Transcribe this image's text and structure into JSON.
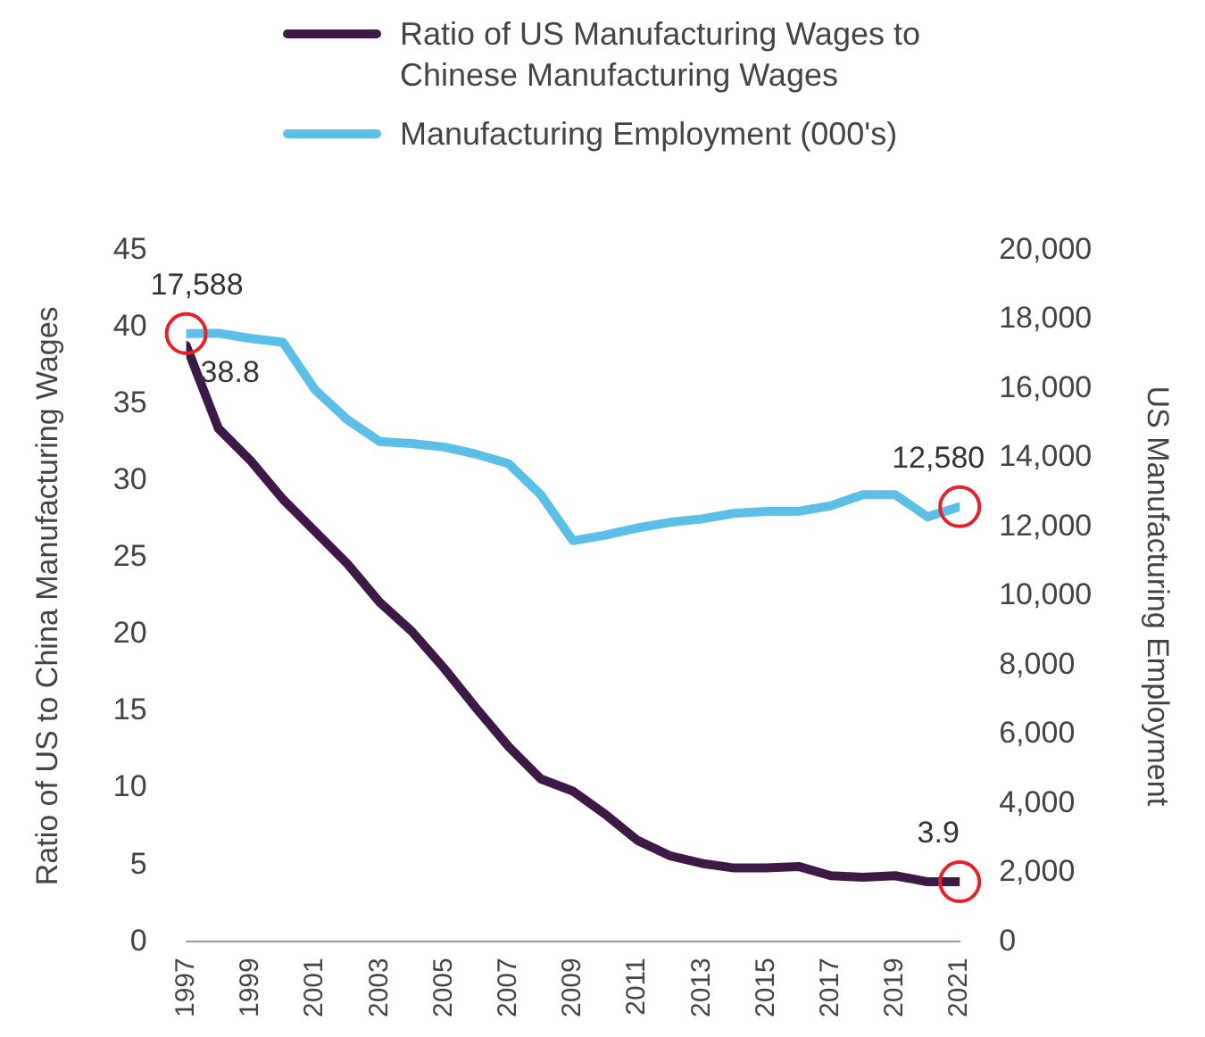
{
  "chart_data": {
    "type": "line",
    "ylabel": "Ratio of US to China Manufacturing Wages",
    "y2label": "US Manufacturing Employment",
    "x": [
      1997,
      1998,
      1999,
      2000,
      2001,
      2002,
      2003,
      2004,
      2005,
      2006,
      2007,
      2008,
      2009,
      2010,
      2011,
      2012,
      2013,
      2014,
      2015,
      2016,
      2017,
      2018,
      2019,
      2020,
      2021
    ],
    "xlim": [
      1997,
      2021
    ],
    "xticks": [
      1997,
      1999,
      2001,
      2003,
      2005,
      2007,
      2009,
      2011,
      2013,
      2015,
      2017,
      2019,
      2021
    ],
    "ylim": [
      0,
      45
    ],
    "yticks": [
      0,
      5,
      10,
      15,
      20,
      25,
      30,
      35,
      40,
      45
    ],
    "y2lim": [
      0,
      20000
    ],
    "y2ticks": [
      {
        "value": 0,
        "label": "0"
      },
      {
        "value": 2000,
        "label": "2,000"
      },
      {
        "value": 4000,
        "label": "4,000"
      },
      {
        "value": 6000,
        "label": "6,000"
      },
      {
        "value": 8000,
        "label": "8,000"
      },
      {
        "value": 10000,
        "label": "10,000"
      },
      {
        "value": 12000,
        "label": "12,000"
      },
      {
        "value": 14000,
        "label": "14,000"
      },
      {
        "value": 16000,
        "label": "16,000"
      },
      {
        "value": 18000,
        "label": "18,000"
      },
      {
        "value": 20000,
        "label": "20,000"
      }
    ],
    "grid": false,
    "legend": "top left",
    "marker": "none",
    "line_style": "solid",
    "series": [
      {
        "name": "Ratio of US Manufacturing Wages to Chinese Manufacturing Wages",
        "color": "#3d1a45",
        "values": [
          38.8,
          33.4,
          31.3,
          28.8,
          26.7,
          24.6,
          22.1,
          20.2,
          17.8,
          15.2,
          12.7,
          10.6,
          9.8,
          8.3,
          6.6,
          5.6,
          5.1,
          4.8,
          4.8,
          4.9,
          4.3,
          4.2,
          4.3,
          3.9,
          3.9
        ],
        "value_labels": [
          "38.8",
          null,
          null,
          null,
          null,
          null,
          null,
          null,
          null,
          null,
          null,
          null,
          null,
          null,
          null,
          null,
          null,
          null,
          null,
          null,
          null,
          null,
          null,
          null,
          "3.9"
        ]
      },
      {
        "name": "Manufacturing Employment (000's)",
        "color": "#5bbfe8",
        "axis": "y2",
        "values": [
          17588,
          17600,
          17450,
          17340,
          15960,
          15100,
          14470,
          14410,
          14310,
          14100,
          13830,
          12930,
          11600,
          11760,
          11970,
          12130,
          12230,
          12390,
          12450,
          12450,
          12610,
          12930,
          12930,
          12290,
          12580
        ],
        "value_labels": [
          "17,588",
          null,
          null,
          null,
          null,
          null,
          null,
          null,
          null,
          null,
          null,
          null,
          null,
          null,
          null,
          null,
          null,
          null,
          null,
          null,
          null,
          null,
          null,
          null,
          "12,580"
        ]
      }
    ]
  }
}
